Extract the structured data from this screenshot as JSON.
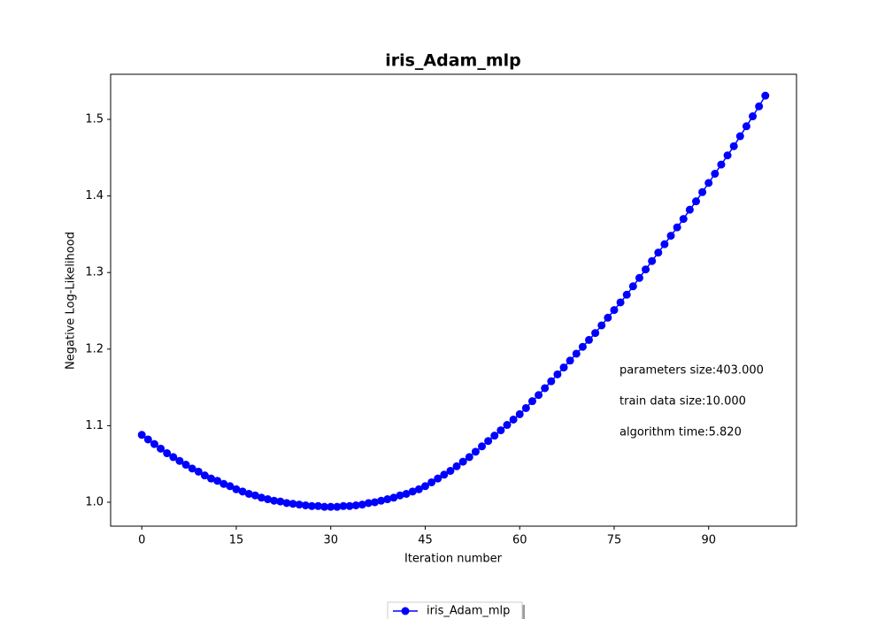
{
  "chart_data": {
    "type": "line",
    "title": "iris_Adam_mlp",
    "x_label": "Iteration number",
    "y_label": "Negative Log-Likelihood",
    "x": [
      0,
      1,
      2,
      3,
      4,
      5,
      6,
      7,
      8,
      9,
      10,
      11,
      12,
      13,
      14,
      15,
      16,
      17,
      18,
      19,
      20,
      21,
      22,
      23,
      24,
      25,
      26,
      27,
      28,
      29,
      30,
      31,
      32,
      33,
      34,
      35,
      36,
      37,
      38,
      39,
      40,
      41,
      42,
      43,
      44,
      45,
      46,
      47,
      48,
      49,
      50,
      51,
      52,
      53,
      54,
      55,
      56,
      57,
      58,
      59,
      60,
      61,
      62,
      63,
      64,
      65,
      66,
      67,
      68,
      69,
      70,
      71,
      72,
      73,
      74,
      75,
      76,
      77,
      78,
      79,
      80,
      81,
      82,
      83,
      84,
      85,
      86,
      87,
      88,
      89,
      90,
      91,
      92,
      93,
      94,
      95,
      96,
      97,
      98,
      99
    ],
    "series": [
      {
        "name": "iris_Adam_mlp",
        "color": "#0000ff",
        "values": [
          1.088,
          1.082,
          1.076,
          1.07,
          1.064,
          1.059,
          1.054,
          1.049,
          1.044,
          1.04,
          1.035,
          1.031,
          1.028,
          1.024,
          1.021,
          1.017,
          1.014,
          1.011,
          1.009,
          1.006,
          1.004,
          1.002,
          1.001,
          0.999,
          0.998,
          0.997,
          0.996,
          0.995,
          0.995,
          0.994,
          0.994,
          0.994,
          0.995,
          0.995,
          0.996,
          0.997,
          0.999,
          1.0,
          1.002,
          1.004,
          1.006,
          1.009,
          1.011,
          1.014,
          1.017,
          1.021,
          1.026,
          1.031,
          1.036,
          1.041,
          1.047,
          1.053,
          1.059,
          1.066,
          1.073,
          1.08,
          1.087,
          1.094,
          1.101,
          1.108,
          1.115,
          1.123,
          1.132,
          1.14,
          1.149,
          1.158,
          1.167,
          1.176,
          1.185,
          1.194,
          1.203,
          1.212,
          1.221,
          1.231,
          1.241,
          1.251,
          1.261,
          1.271,
          1.282,
          1.293,
          1.304,
          1.315,
          1.326,
          1.337,
          1.348,
          1.359,
          1.37,
          1.382,
          1.393,
          1.405,
          1.417,
          1.429,
          1.441,
          1.453,
          1.465,
          1.478,
          1.491,
          1.504,
          1.517,
          1.531
        ]
      }
    ],
    "xlim": [
      -4.95,
      103.95
    ],
    "ylim": [
      0.9688,
      1.5589
    ],
    "xticks": [
      0,
      15,
      30,
      45,
      60,
      75,
      90
    ],
    "yticks": [
      {
        "value": 1.0,
        "label": "1.0"
      },
      1.1,
      1.2,
      1.3,
      1.4,
      1.5
    ],
    "annotations": [
      "parameters size:403.000",
      "train data size:10.000",
      "algorithm time:5.820"
    ],
    "legend": "lower center"
  }
}
